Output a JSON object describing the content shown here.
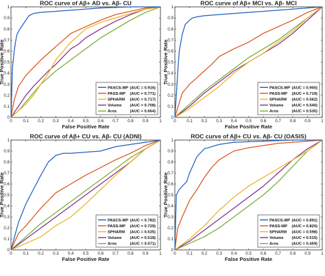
{
  "figure": "Four ROC curve panels",
  "chart_data": [
    {
      "type": "line",
      "title": "ROC curve of Aβ+ AD vs. Aβ- CU",
      "xlabel": "False Positive Rate",
      "ylabel": "True Positive Rate",
      "xlim": [
        0,
        1
      ],
      "ylim": [
        0,
        1
      ],
      "xticks": [
        "0",
        "0.1",
        "0.2",
        "0.3",
        "0.4",
        "0.5",
        "0.6",
        "0.7",
        "0.8",
        "0.9",
        "1"
      ],
      "yticks": [
        "0",
        "0.1",
        "0.2",
        "0.3",
        "0.4",
        "0.5",
        "0.6",
        "0.7",
        "0.8",
        "0.9",
        "1"
      ],
      "legend_position": "bottom-right",
      "series": [
        {
          "name": "PASCS-MP",
          "auc": "(AUC = 0.916)",
          "color": "#1f5fbf",
          "x": [
            0,
            0.01,
            0.02,
            0.03,
            0.04,
            0.06,
            0.08,
            0.1,
            0.12,
            0.15,
            0.2,
            0.3,
            0.4,
            0.5,
            0.6,
            0.7,
            0.8,
            0.9,
            1
          ],
          "y": [
            0,
            0.45,
            0.58,
            0.68,
            0.75,
            0.8,
            0.84,
            0.88,
            0.92,
            0.94,
            0.95,
            0.96,
            0.97,
            0.98,
            0.99,
            0.995,
            1,
            1,
            1
          ]
        },
        {
          "name": "PASS-MP",
          "auc": "(AUC = 0.771)",
          "color": "#d95319",
          "x": [
            0,
            0.02,
            0.05,
            0.1,
            0.15,
            0.2,
            0.25,
            0.3,
            0.35,
            0.4,
            0.5,
            0.6,
            0.7,
            0.8,
            0.9,
            1
          ],
          "y": [
            0,
            0.15,
            0.28,
            0.38,
            0.45,
            0.52,
            0.58,
            0.64,
            0.7,
            0.76,
            0.82,
            0.88,
            0.93,
            0.96,
            0.99,
            1
          ]
        },
        {
          "name": "SPHARM",
          "auc": "(AUC = 0.717)",
          "color": "#edb120",
          "x": [
            0,
            0.05,
            0.1,
            0.15,
            0.2,
            0.25,
            0.3,
            0.35,
            0.4,
            0.45,
            0.5,
            0.6,
            0.7,
            0.8,
            0.9,
            1
          ],
          "y": [
            0,
            0.06,
            0.12,
            0.2,
            0.3,
            0.4,
            0.52,
            0.6,
            0.68,
            0.74,
            0.8,
            0.86,
            0.9,
            0.94,
            0.98,
            1
          ]
        },
        {
          "name": "Volume",
          "auc": "(AUC = 0.708)",
          "color": "#7e2f8e",
          "x": [
            0,
            0.05,
            0.1,
            0.15,
            0.2,
            0.25,
            0.3,
            0.35,
            0.4,
            0.45,
            0.5,
            0.6,
            0.7,
            0.8,
            0.9,
            1
          ],
          "y": [
            0,
            0.1,
            0.2,
            0.28,
            0.35,
            0.42,
            0.48,
            0.55,
            0.62,
            0.66,
            0.72,
            0.8,
            0.87,
            0.93,
            0.98,
            1
          ]
        },
        {
          "name": "Area",
          "auc": "(AUC = 0.664)",
          "color": "#77ac30",
          "x": [
            0,
            0.05,
            0.1,
            0.15,
            0.2,
            0.3,
            0.4,
            0.5,
            0.6,
            0.7,
            0.8,
            0.9,
            1
          ],
          "y": [
            0,
            0.06,
            0.14,
            0.22,
            0.3,
            0.42,
            0.52,
            0.62,
            0.72,
            0.8,
            0.88,
            0.95,
            1
          ]
        }
      ]
    },
    {
      "type": "line",
      "title": "ROC curve of Aβ+ MCI vs. Aβ- MCI",
      "xlabel": "False Positive Rate",
      "ylabel": "True Positive Rate",
      "xlim": [
        0,
        1
      ],
      "ylim": [
        0,
        1
      ],
      "xticks": [
        "0",
        "0.1",
        "0.2",
        "0.3",
        "0.4",
        "0.5",
        "0.6",
        "0.7",
        "0.8",
        "0.9",
        "1"
      ],
      "yticks": [
        "0",
        "0.1",
        "0.2",
        "0.3",
        "0.4",
        "0.5",
        "0.6",
        "0.7",
        "0.8",
        "0.9",
        "1"
      ],
      "legend_position": "bottom-right",
      "series": [
        {
          "name": "PASCS-MP",
          "auc": "(AUC = 0.900)",
          "color": "#1f5fbf",
          "x": [
            0,
            0.01,
            0.02,
            0.03,
            0.05,
            0.07,
            0.1,
            0.12,
            0.15,
            0.2,
            0.3,
            0.4,
            0.5,
            0.6,
            0.7,
            0.8,
            0.9,
            1
          ],
          "y": [
            0,
            0.2,
            0.42,
            0.6,
            0.75,
            0.84,
            0.88,
            0.9,
            0.91,
            0.92,
            0.93,
            0.94,
            0.95,
            0.96,
            0.97,
            0.98,
            0.99,
            1
          ]
        },
        {
          "name": "PASS-MP",
          "auc": "(AUC = 0.719)",
          "color": "#d95319",
          "x": [
            0,
            0.05,
            0.1,
            0.15,
            0.2,
            0.25,
            0.3,
            0.4,
            0.5,
            0.6,
            0.7,
            0.8,
            0.9,
            1
          ],
          "y": [
            0,
            0.22,
            0.3,
            0.36,
            0.42,
            0.48,
            0.55,
            0.62,
            0.68,
            0.76,
            0.82,
            0.88,
            0.95,
            1
          ]
        },
        {
          "name": "SPHARM",
          "auc": "(AUC = 0.562)",
          "color": "#edb120",
          "x": [
            0,
            0.1,
            0.2,
            0.3,
            0.4,
            0.5,
            0.6,
            0.7,
            0.8,
            0.9,
            1
          ],
          "y": [
            0,
            0.08,
            0.18,
            0.28,
            0.4,
            0.5,
            0.58,
            0.68,
            0.78,
            0.9,
            1
          ]
        },
        {
          "name": "Volume",
          "auc": "(AUC = 0.540)",
          "color": "#7e2f8e",
          "x": [
            0,
            0.1,
            0.2,
            0.3,
            0.4,
            0.5,
            0.6,
            0.7,
            0.8,
            0.9,
            1
          ],
          "y": [
            0,
            0.1,
            0.22,
            0.32,
            0.42,
            0.5,
            0.58,
            0.66,
            0.76,
            0.88,
            1
          ]
        },
        {
          "name": "Area",
          "auc": "(AUC = 0.535)",
          "color": "#77ac30",
          "x": [
            0,
            0.1,
            0.2,
            0.3,
            0.4,
            0.5,
            0.6,
            0.7,
            0.8,
            0.9,
            1
          ],
          "y": [
            0,
            0.12,
            0.24,
            0.34,
            0.44,
            0.54,
            0.62,
            0.7,
            0.8,
            0.9,
            1
          ]
        }
      ]
    },
    {
      "type": "line",
      "title": "ROC curve of Aβ+ CU vs. Aβ- CU (ADNI)",
      "xlabel": "False Positive Rate",
      "ylabel": "True Positive Rate",
      "xlim": [
        0,
        1
      ],
      "ylim": [
        0,
        1
      ],
      "xticks": [
        "0",
        "0.1",
        "0.2",
        "0.3",
        "0.4",
        "0.5",
        "0.6",
        "0.7",
        "0.8",
        "0.9",
        "1"
      ],
      "yticks": [
        "0",
        "0.1",
        "0.2",
        "0.3",
        "0.4",
        "0.5",
        "0.6",
        "0.7",
        "0.8",
        "0.9",
        "1"
      ],
      "legend_position": "bottom-right",
      "series": [
        {
          "name": "PASCS-MP",
          "auc": "(AUC = 0.782)",
          "color": "#1f5fbf",
          "x": [
            0,
            0.02,
            0.05,
            0.1,
            0.15,
            0.2,
            0.25,
            0.3,
            0.35,
            0.4,
            0.5,
            0.6,
            0.7,
            0.8,
            0.9,
            1
          ],
          "y": [
            0,
            0.1,
            0.25,
            0.42,
            0.55,
            0.68,
            0.8,
            0.86,
            0.88,
            0.88,
            0.89,
            0.9,
            0.94,
            0.96,
            0.98,
            1
          ]
        },
        {
          "name": "PASS-MP",
          "auc": "(AUC = 0.729)",
          "color": "#d95319",
          "x": [
            0,
            0.05,
            0.1,
            0.15,
            0.2,
            0.25,
            0.3,
            0.4,
            0.5,
            0.6,
            0.7,
            0.8,
            0.9,
            1
          ],
          "y": [
            0,
            0.15,
            0.22,
            0.3,
            0.38,
            0.45,
            0.52,
            0.6,
            0.68,
            0.75,
            0.82,
            0.88,
            0.95,
            1
          ]
        },
        {
          "name": "SPHARM",
          "auc": "(AUC = 0.535)",
          "color": "#edb120",
          "x": [
            0,
            0.1,
            0.2,
            0.3,
            0.4,
            0.5,
            0.6,
            0.7,
            0.8,
            0.9,
            1
          ],
          "y": [
            0,
            0.06,
            0.12,
            0.22,
            0.3,
            0.42,
            0.55,
            0.68,
            0.8,
            0.92,
            1
          ]
        },
        {
          "name": "Volume",
          "auc": "(AUC = 0.518)",
          "color": "#7e2f8e",
          "x": [
            0,
            0.1,
            0.2,
            0.3,
            0.4,
            0.5,
            0.6,
            0.7,
            0.8,
            0.9,
            1
          ],
          "y": [
            0,
            0.1,
            0.2,
            0.3,
            0.4,
            0.5,
            0.6,
            0.7,
            0.8,
            0.92,
            1
          ]
        },
        {
          "name": "Area",
          "auc": "(AUC = 0.571)",
          "color": "#77ac30",
          "x": [
            0,
            0.1,
            0.2,
            0.3,
            0.4,
            0.5,
            0.6,
            0.7,
            0.8,
            0.9,
            1
          ],
          "y": [
            0,
            0.12,
            0.24,
            0.34,
            0.44,
            0.54,
            0.64,
            0.74,
            0.84,
            0.92,
            1
          ]
        }
      ]
    },
    {
      "type": "line",
      "title": "ROC curve of Aβ+ CU vs. Aβ- CU (OASIS)",
      "xlabel": "False Positive Rate",
      "ylabel": "True Positive Rate",
      "xlim": [
        0,
        1
      ],
      "ylim": [
        0,
        1
      ],
      "xticks": [
        "0",
        "0.1",
        "0.2",
        "0.3",
        "0.4",
        "0.5",
        "0.6",
        "0.7",
        "0.8",
        "0.9",
        "1"
      ],
      "yticks": [
        "0",
        "0.1",
        "0.2",
        "0.3",
        "0.4",
        "0.5",
        "0.6",
        "0.7",
        "0.8",
        "0.9",
        "1"
      ],
      "legend_position": "bottom-right",
      "series": [
        {
          "name": "PASCS-MP",
          "auc": "(AUC = 0.891)",
          "color": "#1f5fbf",
          "x": [
            0,
            0.01,
            0.03,
            0.05,
            0.08,
            0.1,
            0.15,
            0.2,
            0.3,
            0.4,
            0.5,
            0.6,
            0.7,
            0.8,
            0.9,
            1
          ],
          "y": [
            0,
            0.5,
            0.55,
            0.58,
            0.62,
            0.7,
            0.85,
            0.92,
            0.96,
            0.98,
            0.985,
            0.99,
            0.995,
            1,
            1,
            1
          ]
        },
        {
          "name": "PASS-MP",
          "auc": "(AUC = 0.820)",
          "color": "#d95319",
          "x": [
            0,
            0.02,
            0.05,
            0.1,
            0.15,
            0.2,
            0.25,
            0.3,
            0.4,
            0.5,
            0.6,
            0.7,
            0.8,
            0.9,
            1
          ],
          "y": [
            0,
            0.2,
            0.3,
            0.45,
            0.55,
            0.66,
            0.75,
            0.82,
            0.9,
            0.93,
            0.95,
            0.97,
            0.98,
            0.99,
            1
          ]
        },
        {
          "name": "SPHARM",
          "auc": "(AUC = 0.598)",
          "color": "#edb120",
          "x": [
            0,
            0.1,
            0.2,
            0.3,
            0.4,
            0.5,
            0.6,
            0.7,
            0.8,
            0.9,
            1
          ],
          "y": [
            0,
            0.1,
            0.22,
            0.36,
            0.48,
            0.58,
            0.66,
            0.74,
            0.82,
            0.9,
            1
          ]
        },
        {
          "name": "Volume",
          "auc": "(AUC = 0.515)",
          "color": "#7e2f8e",
          "x": [
            0,
            0.1,
            0.2,
            0.3,
            0.4,
            0.5,
            0.6,
            0.7,
            0.8,
            0.9,
            1
          ],
          "y": [
            0,
            0.08,
            0.18,
            0.28,
            0.38,
            0.48,
            0.58,
            0.7,
            0.82,
            0.92,
            1
          ]
        },
        {
          "name": "Area",
          "auc": "(AUC = 0.459)",
          "color": "#77ac30",
          "x": [
            0,
            0.1,
            0.2,
            0.3,
            0.4,
            0.5,
            0.6,
            0.7,
            0.8,
            0.9,
            1
          ],
          "y": [
            0,
            0.06,
            0.12,
            0.2,
            0.3,
            0.4,
            0.5,
            0.62,
            0.76,
            0.9,
            1
          ]
        }
      ]
    }
  ]
}
